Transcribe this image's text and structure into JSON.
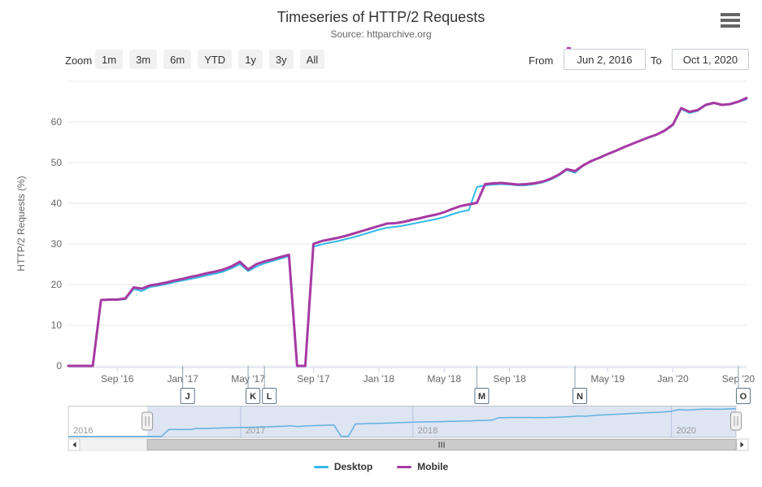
{
  "header": {
    "title": "Timeseries of HTTP/2 Requests",
    "subtitle": "Source: httparchive.org",
    "menu_icon": "hamburger-icon"
  },
  "toolbar": {
    "zoom_label": "Zoom",
    "buttons": [
      "1m",
      "3m",
      "6m",
      "YTD",
      "1y",
      "3y",
      "All"
    ],
    "from_label": "From",
    "from_value": "Jun 2, 2016",
    "to_label": "To",
    "to_value": "Oct 1, 2020"
  },
  "legend": [
    {
      "name": "Desktop",
      "color": "#35b9e6"
    },
    {
      "name": "Mobile",
      "color": "#a63aa2"
    }
  ],
  "chart_data": {
    "type": "line",
    "title": "Timeseries of HTTP/2 Requests",
    "subtitle": "Source: httparchive.org",
    "xlabel": "",
    "ylabel": "HTTP/2 Requests (%)",
    "ylim": [
      0,
      70
    ],
    "y_ticks": [
      0,
      10,
      20,
      30,
      40,
      50,
      60
    ],
    "grid": "horizontal",
    "legend_position": "bottom-center",
    "x_dates": [
      "2016-06-01",
      "2016-06-15",
      "2016-07-01",
      "2016-07-15",
      "2016-08-01",
      "2016-08-15",
      "2016-09-01",
      "2016-09-15",
      "2016-10-01",
      "2016-10-15",
      "2016-11-01",
      "2016-11-15",
      "2016-12-01",
      "2016-12-15",
      "2017-01-01",
      "2017-01-15",
      "2017-02-01",
      "2017-02-15",
      "2017-03-01",
      "2017-03-15",
      "2017-04-01",
      "2017-04-15",
      "2017-05-01",
      "2017-05-15",
      "2017-06-01",
      "2017-06-15",
      "2017-07-01",
      "2017-07-15",
      "2017-08-01",
      "2017-08-15",
      "2017-09-01",
      "2017-09-15",
      "2017-10-01",
      "2017-10-15",
      "2017-11-01",
      "2017-11-15",
      "2017-12-01",
      "2017-12-15",
      "2018-01-01",
      "2018-01-15",
      "2018-02-01",
      "2018-02-15",
      "2018-03-01",
      "2018-03-15",
      "2018-04-01",
      "2018-04-15",
      "2018-05-01",
      "2018-05-15",
      "2018-06-01",
      "2018-06-15",
      "2018-07-01",
      "2018-07-15",
      "2018-08-01",
      "2018-08-15",
      "2018-09-01",
      "2018-09-15",
      "2018-10-01",
      "2018-10-15",
      "2018-11-01",
      "2018-11-15",
      "2018-12-01",
      "2018-12-15",
      "2019-01-01",
      "2019-02-01",
      "2019-03-01",
      "2019-04-01",
      "2019-05-01",
      "2019-06-01",
      "2019-07-01",
      "2019-08-01",
      "2019-09-01",
      "2019-10-01",
      "2019-11-01",
      "2019-12-01",
      "2020-01-01",
      "2020-02-01",
      "2020-03-01",
      "2020-04-01",
      "2020-05-01",
      "2020-06-01",
      "2020-07-01",
      "2020-08-01",
      "2020-09-01",
      "2020-10-01"
    ],
    "series": [
      {
        "name": "Desktop",
        "color": "#35b9e6",
        "line_width": 2,
        "values": [
          0,
          0,
          0,
          0,
          16.1,
          16.2,
          16.2,
          16.4,
          18.9,
          18.4,
          19.4,
          19.7,
          20.1,
          20.6,
          21.0,
          21.4,
          21.8,
          22.3,
          22.7,
          23.2,
          24.0,
          25.0,
          23.3,
          24.4,
          25.2,
          25.8,
          26.4,
          27.0,
          0,
          0,
          29.3,
          29.9,
          30.3,
          30.7,
          31.2,
          31.7,
          32.3,
          32.9,
          33.5,
          34.0,
          34.2,
          34.5,
          34.9,
          35.3,
          35.7,
          36.1,
          36.6,
          37.3,
          37.9,
          38.3,
          44.0,
          44.4,
          44.6,
          44.7,
          44.6,
          44.4,
          44.4,
          44.7,
          45.1,
          45.8,
          46.8,
          48.2,
          47.5,
          49.2,
          50.3,
          51.1,
          52.0,
          52.8,
          53.7,
          54.6,
          55.4,
          56.1,
          56.8,
          57.8,
          59.2,
          63.2,
          62.2,
          62.7,
          64.1,
          64.6,
          64.1,
          64.3,
          64.9,
          65.6
        ]
      },
      {
        "name": "Mobile",
        "color": "#a63aa2",
        "line_width": 3,
        "values": [
          0,
          0,
          0,
          0,
          16.2,
          16.3,
          16.3,
          16.6,
          19.3,
          19.0,
          19.8,
          20.1,
          20.5,
          21.0,
          21.4,
          21.9,
          22.3,
          22.8,
          23.2,
          23.7,
          24.5,
          25.6,
          23.7,
          25.0,
          25.7,
          26.2,
          26.8,
          27.3,
          0,
          0,
          30.0,
          30.7,
          31.1,
          31.5,
          32.0,
          32.6,
          33.2,
          33.8,
          34.4,
          35.0,
          35.1,
          35.4,
          35.9,
          36.3,
          36.8,
          37.2,
          37.8,
          38.6,
          39.3,
          39.7,
          40.1,
          44.7,
          44.9,
          45.0,
          44.8,
          44.6,
          44.7,
          44.9,
          45.3,
          46.0,
          47.0,
          48.4,
          47.9,
          49.3,
          50.4,
          51.2,
          52.1,
          52.9,
          53.8,
          54.6,
          55.4,
          56.2,
          56.9,
          57.9,
          59.4,
          63.4,
          62.5,
          62.9,
          64.2,
          64.7,
          64.2,
          64.4,
          65.0,
          65.9
        ]
      }
    ],
    "x_ticks": [
      {
        "label": "Sep '16",
        "i": 6
      },
      {
        "label": "Jan '17",
        "i": 14
      },
      {
        "label": "May '17",
        "i": 22
      },
      {
        "label": "Sep '17",
        "i": 30
      },
      {
        "label": "Jan '18",
        "i": 38
      },
      {
        "label": "May '18",
        "i": 46
      },
      {
        "label": "Sep '18",
        "i": 54
      },
      {
        "label": "May '19",
        "i": 66
      },
      {
        "label": "Jan '20",
        "i": 74
      },
      {
        "label": "Sep '20",
        "i": 82
      }
    ],
    "flags": [
      {
        "label": "J",
        "i": 14
      },
      {
        "label": "K",
        "i": 22
      },
      {
        "label": "L",
        "i": 24
      },
      {
        "label": "M",
        "i": 50
      },
      {
        "label": "N",
        "i": 62
      },
      {
        "label": "O",
        "i": 82
      }
    ],
    "navigator": {
      "lead_zero_points": 10,
      "line_color": "#63b1e0",
      "mask_color": "rgba(102,133,194,0.22)",
      "selected_from_i": 11,
      "year_ticks": [
        {
          "label": "2016",
          "i": 0,
          "grid": false
        },
        {
          "label": "2017",
          "i": 24,
          "grid": true
        },
        {
          "label": "2018",
          "i": 48,
          "grid": true
        },
        {
          "label": "2020",
          "i": 84,
          "grid": true
        }
      ]
    }
  }
}
